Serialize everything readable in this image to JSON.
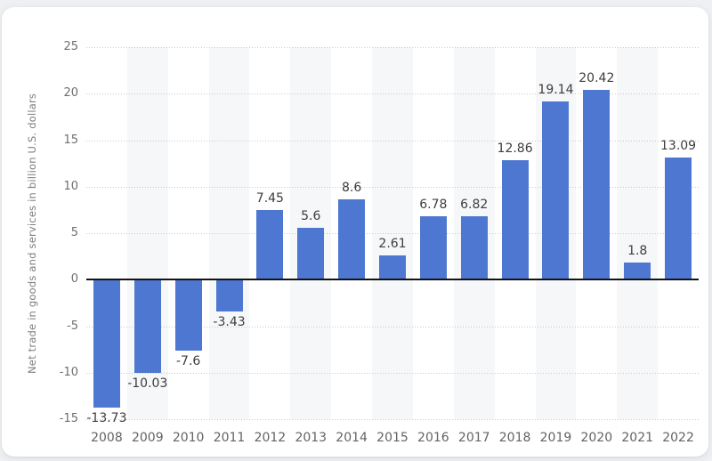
{
  "page": {
    "background_color": "#eef0f3",
    "card_background_color": "#ffffff"
  },
  "chart_data": {
    "type": "bar",
    "title": "",
    "xlabel": "",
    "ylabel": "Net trade in goods and services in billion U.S. dollars",
    "categories": [
      "2008",
      "2009",
      "2010",
      "2011",
      "2012",
      "2013",
      "2014",
      "2015",
      "2016",
      "2017",
      "2018",
      "2019",
      "2020",
      "2021",
      "2022"
    ],
    "values": [
      -13.73,
      -10.03,
      -7.6,
      -3.43,
      7.45,
      5.6,
      8.6,
      2.61,
      6.78,
      6.82,
      12.86,
      19.14,
      20.42,
      1.8,
      13.09
    ],
    "value_labels": [
      "-13.73",
      "-10.03",
      "-7.6",
      "-3.43",
      "7.45",
      "5.6",
      "8.6",
      "2.61",
      "6.78",
      "6.82",
      "12.86",
      "19.14",
      "20.42",
      "1.8",
      "13.09"
    ],
    "ylim": [
      -15,
      25
    ],
    "yticks": [
      25,
      20,
      15,
      10,
      5,
      0,
      -5,
      -10,
      -15
    ],
    "ytick_labels": [
      "25",
      "20",
      "15",
      "10",
      "5",
      "0",
      "-5",
      "-10",
      "-15"
    ],
    "grid": "dotted horizontal gridlines, solid black zero baseline",
    "legend": "none",
    "banded_categories": [
      "2009",
      "2011",
      "2013",
      "2015",
      "2017",
      "2019",
      "2021"
    ],
    "colors": {
      "bar": "#4d77d1",
      "column_band": "#f6f7f9",
      "gridline": "#c9c9c9",
      "zero_line": "#141414",
      "value_label": "#3d3d3d",
      "x_tick_label": "#636363",
      "y_tick_label": "#6f6f6f",
      "axis_title": "#7e7e7e"
    }
  }
}
